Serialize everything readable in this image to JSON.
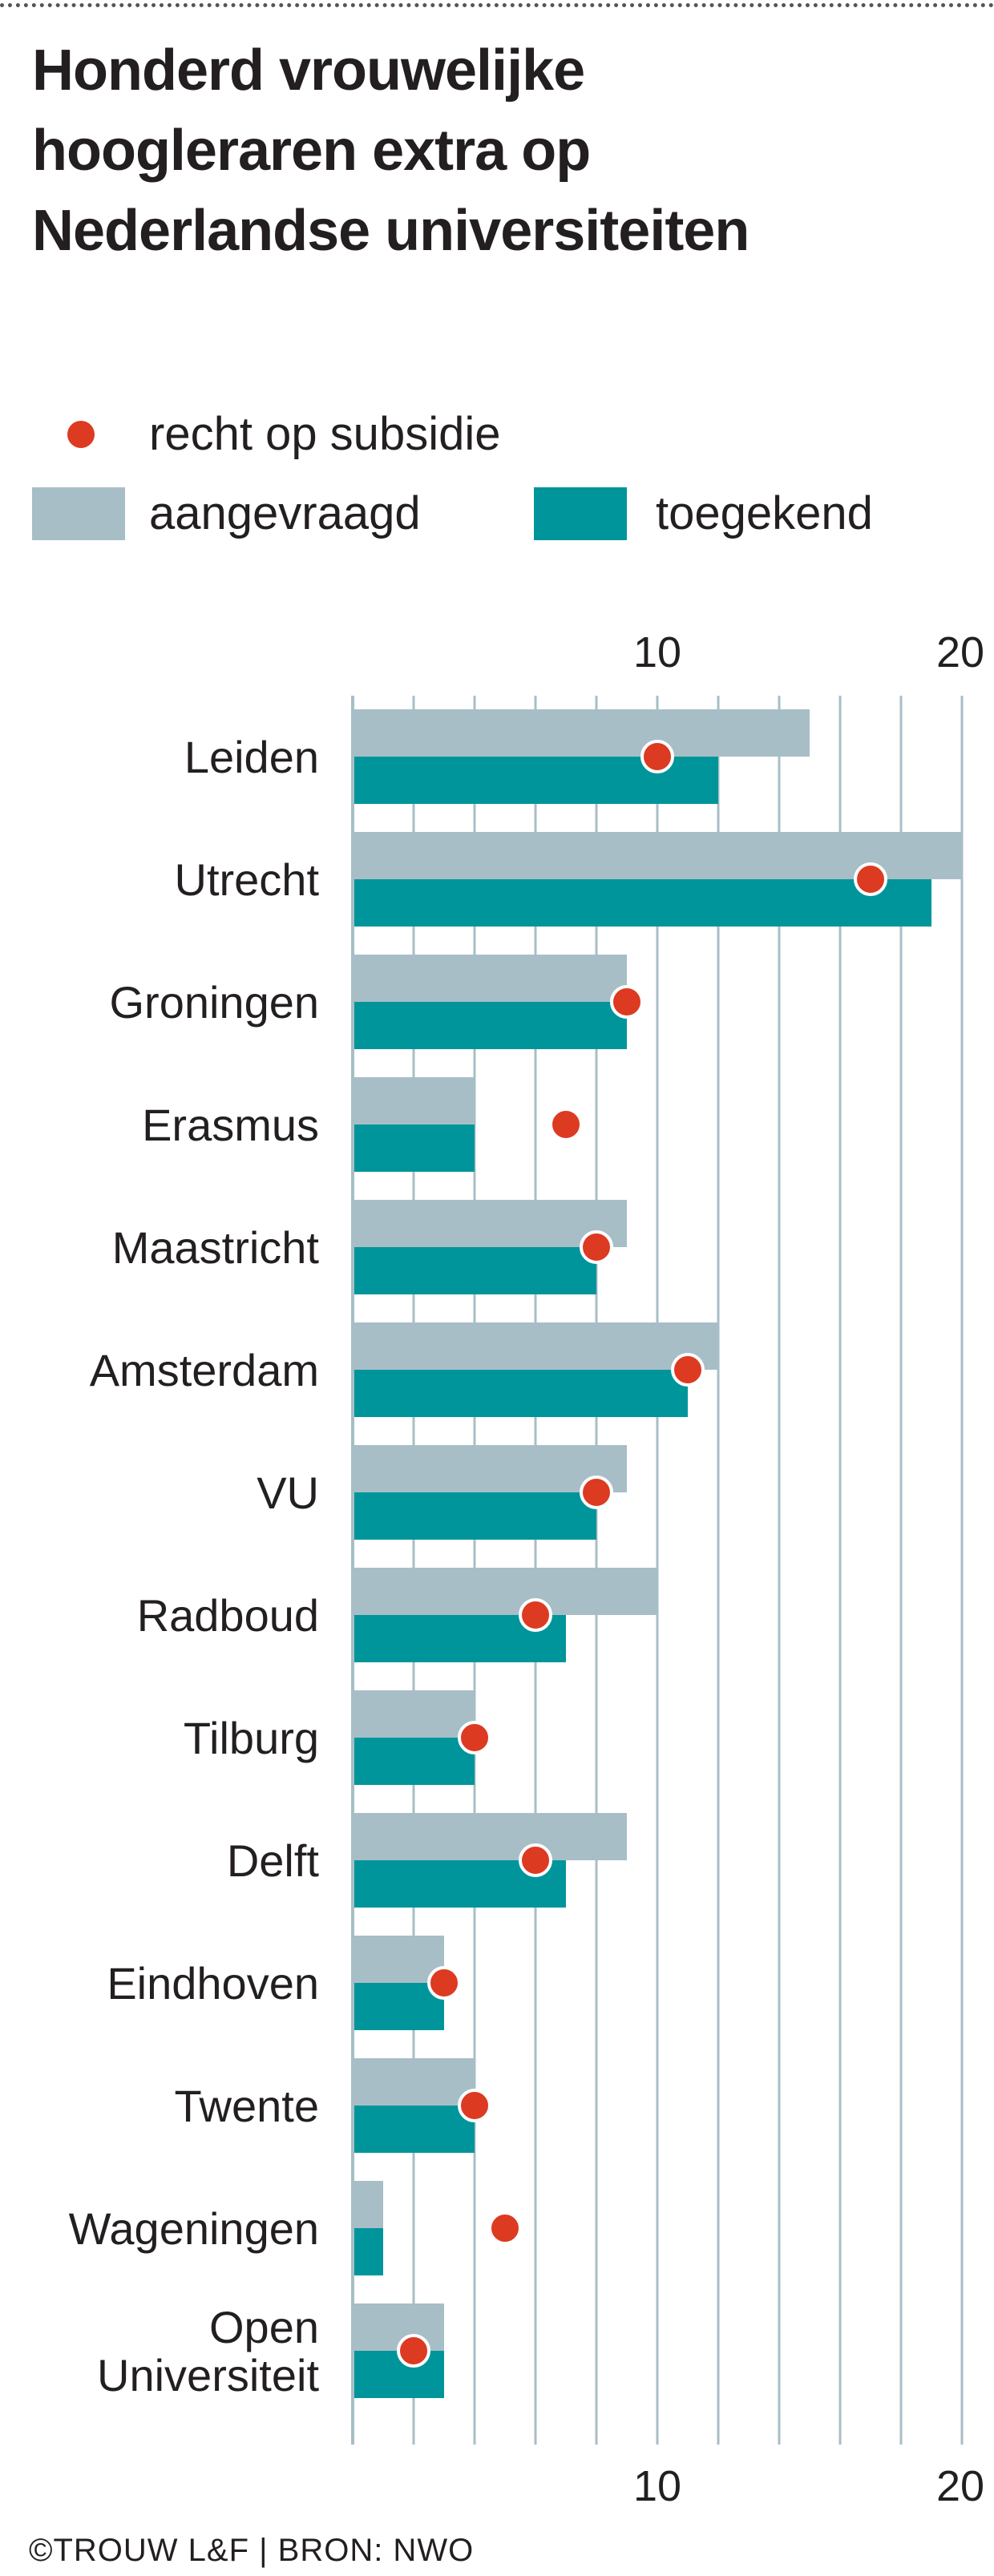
{
  "title_lines": [
    "Honderd vrouwelijke",
    "hoogleraren extra op",
    "Nederlandse universiteiten"
  ],
  "legend": {
    "dot_label": "recht op subsidie",
    "requested_label": "aangevraagd",
    "granted_label": "toegekend"
  },
  "credit": "©TROUW L&F | BRON: NWO",
  "colors": {
    "requested": "#a8bec7",
    "granted": "#00959a",
    "dot": "#dd3a22",
    "grid": "#a8bec7",
    "axis": "#231f20"
  },
  "chart_data": {
    "type": "bar",
    "orientation": "horizontal",
    "categories": [
      "Leiden",
      "Utrecht",
      "Groningen",
      "Erasmus",
      "Maastricht",
      "Amsterdam",
      "VU",
      "Radboud",
      "Tilburg",
      "Delft",
      "Eindhoven",
      "Twente",
      "Wageningen",
      "Open\nUniversiteit"
    ],
    "series": [
      {
        "name": "aangevraagd",
        "values": [
          15,
          20,
          9,
          4,
          9,
          12,
          9,
          10,
          4,
          9,
          3,
          4,
          1,
          3
        ]
      },
      {
        "name": "toegekend",
        "values": [
          12,
          19,
          9,
          4,
          8,
          11,
          8,
          7,
          4,
          7,
          3,
          4,
          1,
          3
        ]
      },
      {
        "name": "recht op subsidie",
        "kind": "dot",
        "values": [
          10,
          17,
          9,
          7,
          8,
          11,
          8,
          6,
          4,
          6,
          3,
          4,
          5,
          2
        ]
      }
    ],
    "xlim": [
      0,
      20
    ],
    "x_gridlines": [
      2,
      4,
      6,
      8,
      10,
      12,
      14,
      16,
      18,
      20
    ],
    "x_ticks": [
      10,
      20
    ],
    "x_tick_labels": [
      "10",
      "20"
    ],
    "grid": true,
    "legend_position": "top-left"
  }
}
